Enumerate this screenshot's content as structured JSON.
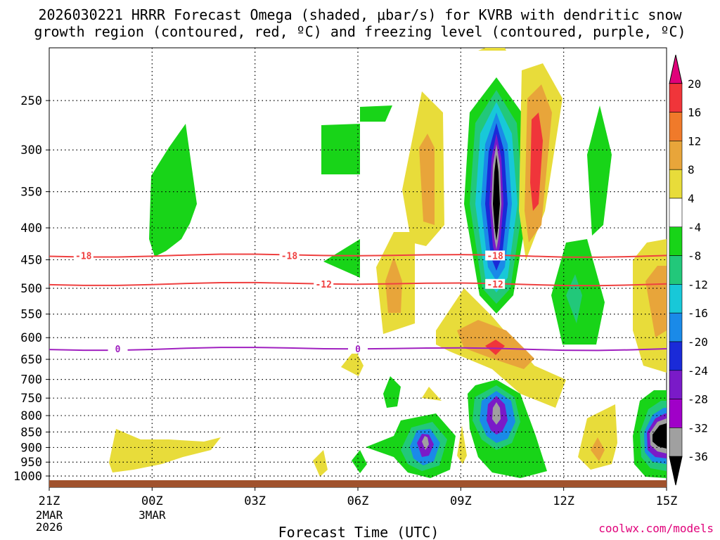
{
  "chart_data": {
    "type": "heatmap",
    "title_lines": [
      "2026030221 HRRR Forecast Omega (shaded, μbar/s) for KVRB with dendritic snow",
      "growth region (contoured, red, ºC) and freezing level (contoured, purple, ºC)"
    ],
    "xlabel": "Forecast Time (UTC)",
    "x_ticks": [
      "21Z",
      "00Z",
      "03Z",
      "06Z",
      "09Z",
      "12Z",
      "15Z"
    ],
    "x_tick_hours": [
      0,
      3,
      6,
      9,
      12,
      15,
      18
    ],
    "x_sublabels": {
      "21Z": [
        "2MAR",
        "2026"
      ],
      "00Z": [
        "3MAR"
      ]
    },
    "y_ticks_hpa": [
      250,
      300,
      350,
      400,
      450,
      500,
      550,
      600,
      650,
      700,
      750,
      800,
      850,
      900,
      950,
      1000
    ],
    "colorbar": {
      "labels": [
        20,
        16,
        12,
        8,
        4,
        -4,
        -8,
        -12,
        -16,
        -20,
        -24,
        -28,
        -32,
        -36
      ],
      "colors": [
        {
          "lo": 20,
          "hi": 24,
          "hex": "#e0007a"
        },
        {
          "lo": 16,
          "hi": 20,
          "hex": "#f0353a"
        },
        {
          "lo": 12,
          "hi": 16,
          "hex": "#f07a2a"
        },
        {
          "lo": 8,
          "hi": 12,
          "hex": "#e8a53a"
        },
        {
          "lo": 4,
          "hi": 8,
          "hex": "#e8dc3a"
        },
        {
          "lo": -4,
          "hi": 4,
          "hex": "#ffffff"
        },
        {
          "lo": -8,
          "hi": -4,
          "hex": "#18d418"
        },
        {
          "lo": -12,
          "hi": -8,
          "hex": "#22c87a"
        },
        {
          "lo": -16,
          "hi": -12,
          "hex": "#18c8d8"
        },
        {
          "lo": -20,
          "hi": -16,
          "hex": "#1a8ae8"
        },
        {
          "lo": -24,
          "hi": -20,
          "hex": "#1a2ad8"
        },
        {
          "lo": -28,
          "hi": -24,
          "hex": "#7a1ac8"
        },
        {
          "lo": -32,
          "hi": -28,
          "hex": "#a000c8"
        },
        {
          "lo": -36,
          "hi": -32,
          "hex": "#a0a0a0"
        },
        {
          "lo": -40,
          "hi": -36,
          "hex": "#000000"
        }
      ]
    },
    "contours": [
      {
        "name": "dgz-minus18",
        "label": "-18",
        "color": "#ef4040",
        "level_hpa": 443
      },
      {
        "name": "dgz-minus12",
        "label": "-12",
        "color": "#ef4040",
        "level_hpa": 492
      },
      {
        "name": "freezing-level",
        "label": "0",
        "color": "#a020c0",
        "level_hpa": 625
      }
    ],
    "ground": {
      "color": "#a0522d"
    },
    "credit": "coolwx.com/models"
  }
}
